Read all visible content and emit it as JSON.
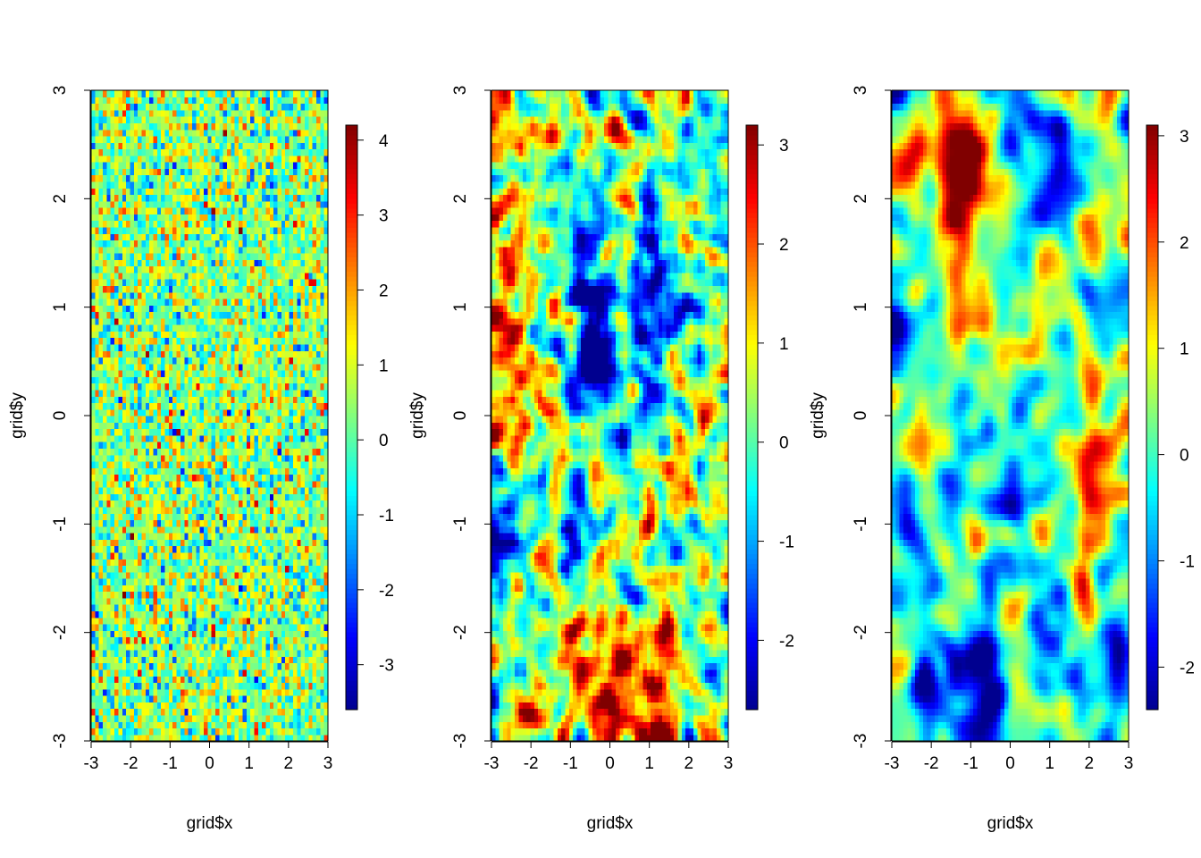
{
  "chart_data": [
    {
      "type": "heatmap",
      "panel": 1,
      "xlabel": "grid$x",
      "ylabel": "grid$y",
      "xlim": [
        -3,
        3
      ],
      "ylim": [
        -3,
        3
      ],
      "x_ticks": [
        "-3",
        "-2",
        "-1",
        "0",
        "1",
        "2",
        "3"
      ],
      "y_ticks": [
        "-3",
        "-2",
        "-1",
        "0",
        "1",
        "2",
        "3"
      ],
      "colorbar": {
        "zlim": [
          -3.6,
          4.2
        ],
        "ticks": [
          "-3",
          "-2",
          "-1",
          "0",
          "1",
          "2",
          "3",
          "4"
        ]
      },
      "colormap": [
        "#00008F",
        "#0000FF",
        "#0080FF",
        "#00FFFF",
        "#80FF80",
        "#FFFF00",
        "#FF8000",
        "#FF0000",
        "#800000"
      ],
      "field": {
        "description_values": "spatially uncorrelated noise",
        "range": [
          -3.6,
          4.2
        ],
        "seed": 11,
        "smooth_passes": 0,
        "mean": 0.4,
        "sd": 1.05
      }
    },
    {
      "type": "heatmap",
      "panel": 2,
      "xlabel": "grid$x",
      "ylabel": "grid$y",
      "xlim": [
        -3,
        3
      ],
      "ylim": [
        -3,
        3
      ],
      "x_ticks": [
        "-3",
        "-2",
        "-1",
        "0",
        "1",
        "2",
        "3"
      ],
      "y_ticks": [
        "-3",
        "-2",
        "-1",
        "0",
        "1",
        "2",
        "3"
      ],
      "colorbar": {
        "zlim": [
          -2.7,
          3.2
        ],
        "ticks": [
          "-2",
          "-1",
          "0",
          "1",
          "2",
          "3"
        ]
      },
      "colormap": [
        "#00008F",
        "#0000FF",
        "#0080FF",
        "#00FFFF",
        "#80FF80",
        "#FFFF00",
        "#FF8000",
        "#FF0000",
        "#800000"
      ],
      "field": {
        "range": [
          -2.7,
          3.2
        ],
        "seed": 23,
        "smooth_passes": 2,
        "mean": 0.2,
        "sd": 0.95,
        "features": [
          {
            "x": -2.7,
            "y": 0.8,
            "sx": 0.45,
            "sy": 0.8,
            "amp": 1.8
          },
          {
            "x": -2.5,
            "y": 2.7,
            "sx": 0.4,
            "sy": 0.5,
            "amp": 1.3
          },
          {
            "x": -0.5,
            "y": 1.2,
            "sx": 0.4,
            "sy": 0.45,
            "amp": -2.2
          },
          {
            "x": -0.4,
            "y": 0.5,
            "sx": 0.35,
            "sy": 0.4,
            "amp": -2.0
          },
          {
            "x": 1.0,
            "y": 1.2,
            "sx": 0.4,
            "sy": 0.6,
            "amp": -1.6
          },
          {
            "x": 0.1,
            "y": -2.6,
            "sx": 0.5,
            "sy": 0.4,
            "amp": 2.3
          },
          {
            "x": 1.2,
            "y": -2.3,
            "sx": 0.35,
            "sy": 0.5,
            "amp": 1.8
          },
          {
            "x": -2.0,
            "y": -2.8,
            "sx": 0.45,
            "sy": 0.3,
            "amp": 1.8
          },
          {
            "x": -0.8,
            "y": -1.0,
            "sx": 0.3,
            "sy": 0.45,
            "amp": -1.4
          },
          {
            "x": -2.8,
            "y": -1.5,
            "sx": 0.35,
            "sy": 0.4,
            "amp": -1.3
          },
          {
            "x": 1.8,
            "y": -0.4,
            "sx": 0.3,
            "sy": 0.3,
            "amp": 1.2
          }
        ]
      }
    },
    {
      "type": "heatmap",
      "panel": 3,
      "xlabel": "grid$x",
      "ylabel": "grid$y",
      "xlim": [
        -3,
        3
      ],
      "ylim": [
        -3,
        3
      ],
      "x_ticks": [
        "-3",
        "-2",
        "-1",
        "0",
        "1",
        "2",
        "3"
      ],
      "y_ticks": [
        "-3",
        "-2",
        "-1",
        "0",
        "1",
        "2",
        "3"
      ],
      "colorbar": {
        "zlim": [
          -2.4,
          3.1
        ],
        "ticks": [
          "-2",
          "-1",
          "0",
          "1",
          "2",
          "3"
        ]
      },
      "colormap": [
        "#00008F",
        "#0000FF",
        "#0080FF",
        "#00FFFF",
        "#80FF80",
        "#FFFF00",
        "#FF8000",
        "#FF0000",
        "#800000"
      ],
      "field": {
        "range": [
          -2.4,
          3.1
        ],
        "seed": 37,
        "smooth_passes": 5,
        "mean": 0.0,
        "sd": 0.75,
        "features": [
          {
            "x": -1.1,
            "y": 2.5,
            "sx": 0.45,
            "sy": 0.45,
            "amp": 2.6
          },
          {
            "x": -1.3,
            "y": 2.0,
            "sx": 0.35,
            "sy": 0.6,
            "amp": 1.6
          },
          {
            "x": -2.2,
            "y": 2.5,
            "sx": 0.45,
            "sy": 0.35,
            "amp": 1.6
          },
          {
            "x": -1.2,
            "y": 1.2,
            "sx": 0.35,
            "sy": 0.3,
            "amp": 1.2
          },
          {
            "x": 0.4,
            "y": 2.8,
            "sx": 0.6,
            "sy": 0.3,
            "amp": -1.4
          },
          {
            "x": 1.3,
            "y": 2.2,
            "sx": 0.3,
            "sy": 0.45,
            "amp": -1.6
          },
          {
            "x": 2.2,
            "y": -0.5,
            "sx": 0.4,
            "sy": 0.45,
            "amp": 2.2
          },
          {
            "x": -2.1,
            "y": 0.0,
            "sx": 0.25,
            "sy": 0.3,
            "amp": 1.4
          },
          {
            "x": -0.2,
            "y": -1.1,
            "sx": 0.4,
            "sy": 0.35,
            "amp": -1.9
          },
          {
            "x": -0.9,
            "y": -2.6,
            "sx": 0.6,
            "sy": 0.35,
            "amp": -2.1
          },
          {
            "x": -2.9,
            "y": 0.6,
            "sx": 0.25,
            "sy": 0.4,
            "amp": -1.2
          },
          {
            "x": 1.9,
            "y": -1.8,
            "sx": 0.2,
            "sy": 0.45,
            "amp": 1.6
          },
          {
            "x": 1.5,
            "y": -2.9,
            "sx": 0.3,
            "sy": 0.2,
            "amp": 1.4
          },
          {
            "x": 2.8,
            "y": -2.1,
            "sx": 0.2,
            "sy": 0.25,
            "amp": -1.4
          }
        ]
      }
    }
  ]
}
